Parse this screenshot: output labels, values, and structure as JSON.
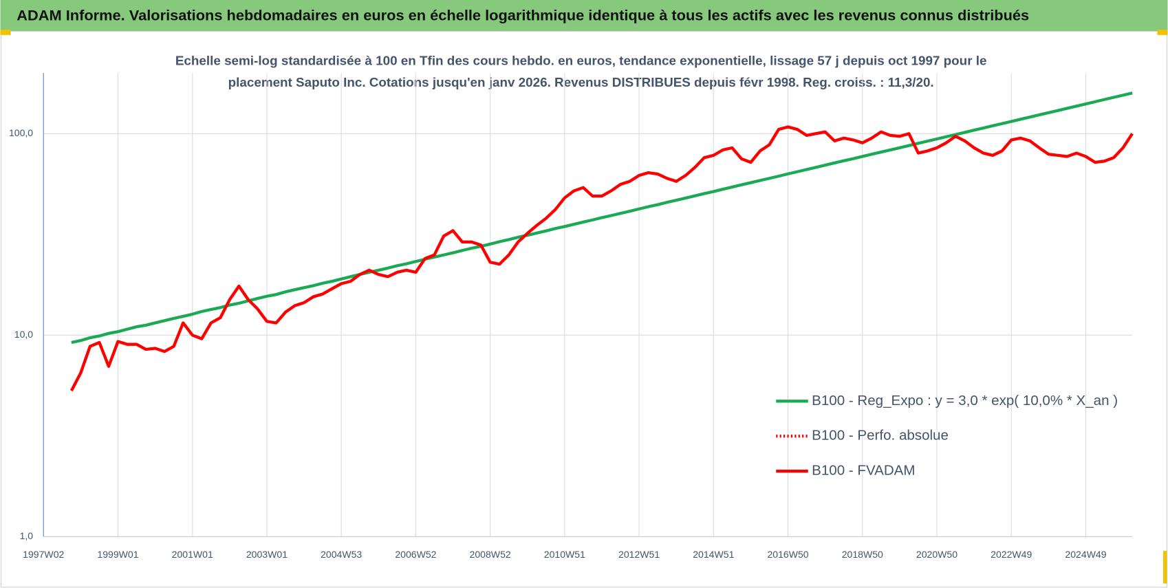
{
  "header": {
    "title": "ADAM Informe. Valorisations hebdomadaires en euros en échelle logarithmique identique à tous les actifs avec les revenus connus distribués"
  },
  "chart_data": {
    "type": "line",
    "subtitle": [
      "Echelle semi-log standardisée à 100 en Tfin des cours hebdo. en euros, tendance exponentielle, lissage 57 j depuis oct 1997 pour le",
      "placement Saputo Inc. Cotations jusqu'en janv 2026. Revenus DISTRIBUES depuis févr 1998. Reg. croiss. : 11,3/20."
    ],
    "log_scale": true,
    "grid": true,
    "legend_position": "right",
    "ylim": [
      1,
      200
    ],
    "yticks": [
      {
        "value": 1,
        "label": "1,0"
      },
      {
        "value": 10,
        "label": "10,0"
      },
      {
        "value": 100,
        "label": "100,0"
      }
    ],
    "categories": [
      "1997W02",
      null,
      null,
      null,
      null,
      null,
      null,
      null,
      "1999W01",
      null,
      null,
      null,
      null,
      null,
      null,
      null,
      "2001W01",
      null,
      null,
      null,
      null,
      null,
      null,
      null,
      "2003W01",
      null,
      null,
      null,
      null,
      null,
      null,
      null,
      "2004W53",
      null,
      null,
      null,
      null,
      null,
      null,
      null,
      "2006W52",
      null,
      null,
      null,
      null,
      null,
      null,
      null,
      "2008W52",
      null,
      null,
      null,
      null,
      null,
      null,
      null,
      "2010W51",
      null,
      null,
      null,
      null,
      null,
      null,
      null,
      "2012W51",
      null,
      null,
      null,
      null,
      null,
      null,
      null,
      "2014W51",
      null,
      null,
      null,
      null,
      null,
      null,
      null,
      "2016W50",
      null,
      null,
      null,
      null,
      null,
      null,
      null,
      "2018W50",
      null,
      null,
      null,
      null,
      null,
      null,
      null,
      "2020W50",
      null,
      null,
      null,
      null,
      null,
      null,
      null,
      "2022W49",
      null,
      null,
      null,
      null,
      null,
      null,
      null,
      "2024W49",
      null,
      null,
      null,
      null,
      null
    ],
    "series": [
      {
        "name": "B100 - Reg_Expo : y = 3,0 * exp( 10,0% *  X_an )",
        "color": "#1aaa55",
        "dash": "solid",
        "values": [
          null,
          null,
          null,
          9.2,
          9.4,
          9.7,
          9.9,
          10.2,
          10.4,
          10.7,
          11.0,
          11.2,
          11.5,
          11.8,
          12.1,
          12.4,
          12.7,
          13.1,
          13.4,
          13.7,
          14.1,
          14.4,
          14.8,
          15.2,
          15.6,
          15.9,
          16.4,
          16.8,
          17.2,
          17.6,
          18.1,
          18.5,
          19.0,
          19.5,
          20.0,
          20.5,
          21.0,
          21.5,
          22.1,
          22.6,
          23.2,
          23.8,
          24.4,
          25.0,
          25.6,
          26.3,
          27.0,
          27.6,
          28.3,
          29.1,
          29.8,
          30.6,
          31.3,
          32.1,
          32.9,
          33.8,
          34.6,
          35.5,
          36.4,
          37.3,
          38.3,
          39.2,
          40.2,
          41.2,
          42.3,
          43.4,
          44.4,
          45.6,
          46.7,
          47.9,
          49.1,
          50.4,
          51.6,
          53.0,
          54.3,
          55.7,
          57.1,
          58.5,
          60.0,
          61.5,
          63.1,
          64.7,
          66.3,
          68.0,
          69.7,
          71.5,
          73.3,
          75.1,
          77.0,
          79.0,
          81.0,
          83.0,
          85.1,
          87.3,
          89.5,
          91.8,
          94.1,
          96.5,
          98.9,
          101.4,
          104.0,
          106.6,
          109.3,
          112.1,
          114.9,
          117.8,
          120.8,
          123.9,
          127.0,
          130.2,
          133.5,
          136.9,
          140.4,
          143.9,
          147.6,
          151.3,
          155.1,
          159.0
        ]
      },
      {
        "name": "B100 - Perfo. absolue",
        "color": "#ff0000",
        "dash": "dotted"
      },
      {
        "name": "B100 - FVADAM",
        "color": "#ff0000",
        "dash": "solid",
        "values": [
          null,
          null,
          null,
          5.3,
          6.5,
          8.8,
          9.2,
          7.0,
          9.3,
          9.0,
          9.0,
          8.5,
          8.6,
          8.3,
          8.8,
          11.5,
          10.0,
          9.6,
          11.5,
          12.2,
          15.0,
          17.5,
          15.0,
          13.5,
          11.7,
          11.5,
          13.0,
          14.0,
          14.5,
          15.5,
          16.0,
          17.0,
          18.0,
          18.5,
          20.0,
          21.0,
          20.0,
          19.5,
          20.5,
          21.0,
          20.5,
          24.0,
          25.0,
          31.0,
          33.0,
          29.0,
          29.0,
          28.0,
          23.0,
          22.5,
          25.0,
          29.0,
          32.0,
          35.0,
          38.0,
          42.0,
          48.0,
          52.0,
          54.0,
          49.0,
          49.0,
          52.0,
          56.0,
          58.0,
          62.0,
          64.0,
          63.0,
          60.0,
          58.0,
          62.0,
          68.0,
          76.0,
          78.0,
          83.0,
          85.0,
          75.0,
          72.0,
          82.0,
          88.0,
          105,
          108,
          105,
          98,
          100,
          102,
          92,
          95,
          93,
          90,
          95,
          102,
          98,
          97,
          100,
          80,
          82,
          85,
          90,
          97,
          92,
          85,
          80,
          78,
          82,
          93,
          95,
          92,
          85,
          79,
          78,
          77,
          80,
          77,
          72,
          73,
          76,
          85,
          100
        ]
      }
    ]
  }
}
